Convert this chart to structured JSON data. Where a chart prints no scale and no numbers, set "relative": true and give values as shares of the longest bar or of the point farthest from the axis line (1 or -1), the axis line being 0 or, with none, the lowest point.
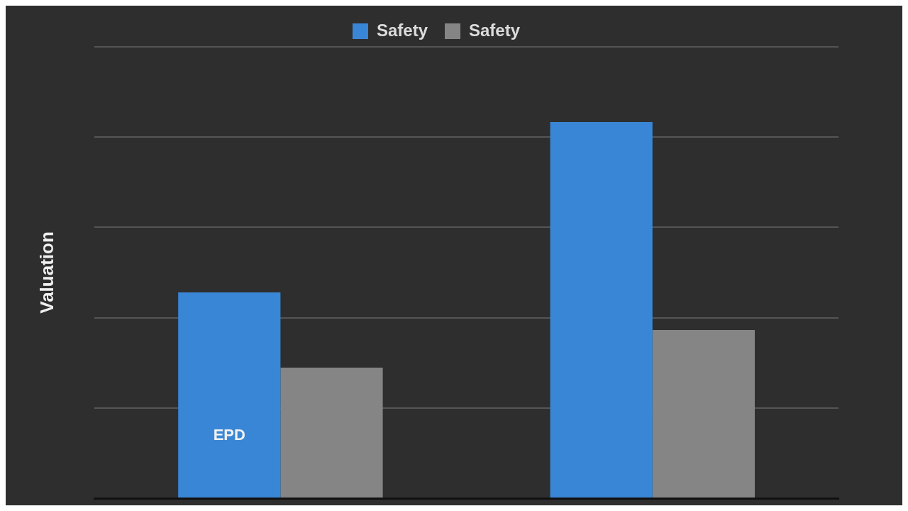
{
  "chart_data": {
    "type": "bar",
    "ylabel": "Valuation",
    "categories": [
      null,
      null
    ],
    "relative": true,
    "grid": "y",
    "legend": "top",
    "series": [
      {
        "name": "Safety",
        "color": "#3a86d6",
        "values": [
          0.547,
          1
        ]
      },
      {
        "name": "Safety",
        "color": "#858585",
        "values": [
          0.347,
          0.447
        ]
      }
    ],
    "annotations": [
      "EPD"
    ]
  }
}
